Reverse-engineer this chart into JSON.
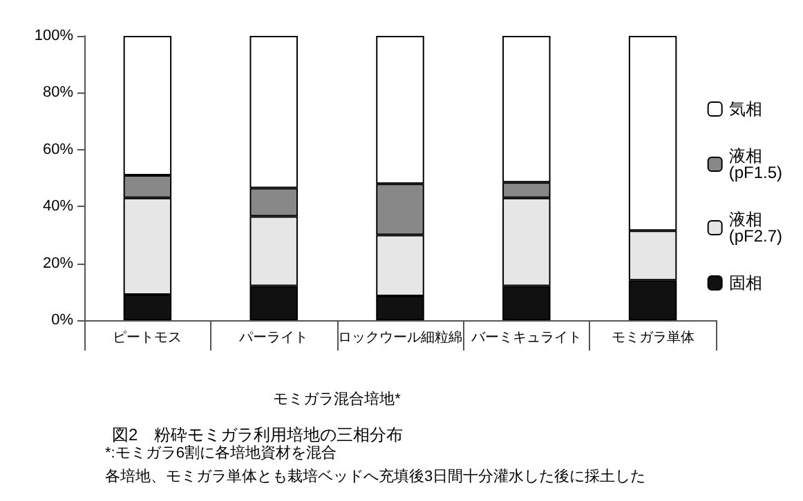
{
  "chart_data": {
    "type": "bar",
    "stacked": true,
    "title": "図2　粉砕モミガラ利用培地の三相分布",
    "categories": [
      "ピートモス",
      "パーライト",
      "ロックウール細粒綿",
      "バーミキュライト",
      "モミガラ単体"
    ],
    "series": [
      {
        "name": "固相",
        "color": "#111111",
        "values": [
          9,
          12,
          8.5,
          12,
          14
        ]
      },
      {
        "name": "液相(pF2.7)",
        "color": "#e6e6e6",
        "values": [
          34,
          24.5,
          21.5,
          31,
          17.5
        ]
      },
      {
        "name": "液相(pF1.5)",
        "color": "#888888",
        "values": [
          8,
          10,
          18,
          5.5,
          null
        ]
      },
      {
        "name": "気相",
        "color": "#ffffff",
        "values": [
          49,
          53.5,
          52,
          51.5,
          68.5
        ]
      }
    ],
    "ylim": [
      0,
      100
    ],
    "yticks": [
      {
        "value": 0,
        "label": "0%"
      },
      {
        "value": 20,
        "label": "20%"
      },
      {
        "value": 40,
        "label": "40%"
      },
      {
        "value": 60,
        "label": "60%"
      },
      {
        "value": 80,
        "label": "80%"
      },
      {
        "value": 100,
        "label": "100%"
      }
    ],
    "grid": false,
    "legend": "right",
    "annotations": [
      "モミガラ混合培地*",
      "*:モミガラ6割に各培地資材を混合",
      "各培地、モミガラ単体とも栽培ベッドへ充填後3日間十分灌水した後に採土した"
    ]
  }
}
